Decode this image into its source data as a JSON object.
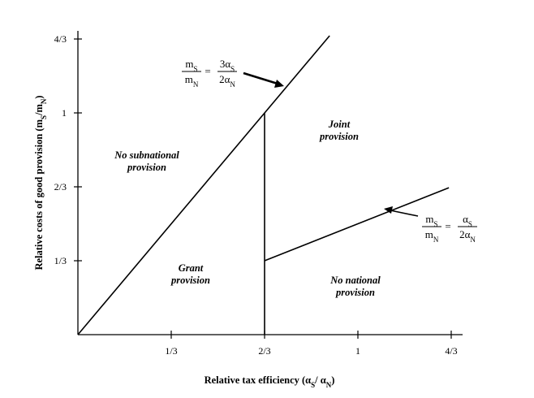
{
  "chart_data": {
    "type": "line",
    "xlabel": [
      "Relative tax efficiency (α",
      "S",
      "/ α",
      "N",
      ")"
    ],
    "ylabel": [
      "Relative costs of good provision (m",
      "S",
      "/m",
      "N",
      ")"
    ],
    "xlim": [
      0,
      1.374
    ],
    "ylim": [
      0,
      1.37
    ],
    "xticks": [
      {
        "value": 0.3333,
        "label": "1/3"
      },
      {
        "value": 0.6667,
        "label": "2/3"
      },
      {
        "value": 1,
        "label": "1"
      },
      {
        "value": 1.3333,
        "label": "4/3"
      }
    ],
    "yticks": [
      {
        "value": 0.3333,
        "label": "1/3"
      },
      {
        "value": 0.6667,
        "label": "2/3"
      },
      {
        "value": 1,
        "label": "1"
      },
      {
        "value": 1.3333,
        "label": "4/3"
      }
    ],
    "series": [
      {
        "color": "#000000",
        "x": [
          0,
          0.899
        ],
        "values": [
          0,
          1.348
        ]
      },
      {
        "color": "#000000",
        "x": [
          0.6667,
          0.6667
        ],
        "values": [
          0,
          1
        ]
      },
      {
        "color": "#000000",
        "x": [
          0.6667,
          1.325
        ],
        "values": [
          0.3333,
          0.6625
        ]
      }
    ],
    "annotations": [
      [
        "No subnational",
        "provision"
      ],
      [
        "Joint",
        "provision"
      ],
      [
        "Grant",
        "provision"
      ],
      [
        "No national",
        "provision"
      ]
    ],
    "equations": [
      {
        "lhs_num": [
          "m",
          "S"
        ],
        "lhs_den": [
          "m",
          "N"
        ],
        "op": "=",
        "rhs_num": [
          "3α",
          "S"
        ],
        "rhs_den": [
          "2α",
          "N"
        ]
      },
      {
        "lhs_num": [
          "m",
          "S"
        ],
        "lhs_den": [
          "m",
          "N"
        ],
        "op": "=",
        "rhs_num": [
          "α",
          "S"
        ],
        "rhs_den": [
          "2α",
          "N"
        ]
      }
    ]
  }
}
